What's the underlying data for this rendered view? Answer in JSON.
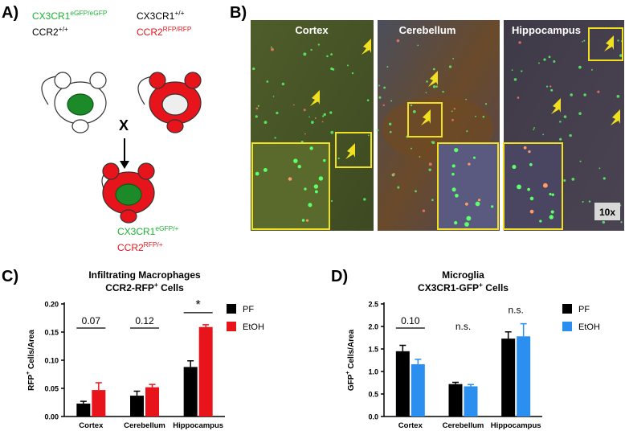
{
  "panels": {
    "a": "A)",
    "b": "B)",
    "c": "C)",
    "d": "D)"
  },
  "genotypes": {
    "parent1": [
      {
        "gene": "CX3CR1",
        "allele": "eGFP/eGFP"
      },
      {
        "gene": "CCR2",
        "allele": "+/+"
      }
    ],
    "parent2": [
      {
        "gene": "CX3CR1",
        "allele": "+/+"
      },
      {
        "gene": "CCR2",
        "allele": "RFP/RFP"
      }
    ],
    "offspring": [
      {
        "gene": "CX3CR1",
        "allele": "eGFP/+"
      },
      {
        "gene": "CCR2",
        "allele": "RFP/+"
      }
    ],
    "cross": "X"
  },
  "micrograph": {
    "regions": [
      "Cortex",
      "Cerebellum",
      "Hippocampus"
    ],
    "magnification": "10x"
  },
  "chart_data": [
    {
      "type": "bar",
      "title": "Infiltrating Macrophages",
      "subtitle": {
        "text": "CCR2-RFP",
        "sup": "+",
        "rest": " Cells"
      },
      "ylabel": {
        "text": "RFP",
        "sup": "+",
        "rest": " Cells/Area"
      },
      "categories": [
        "Cortex",
        "Cerebellum",
        "Hippocampus"
      ],
      "series": [
        {
          "name": "PF",
          "color": "#000000",
          "values": [
            0.023,
            0.037,
            0.088
          ],
          "errors": [
            0.004,
            0.008,
            0.011
          ]
        },
        {
          "name": "EtOH",
          "color": "#e8141b",
          "values": [
            0.047,
            0.052,
            0.159
          ],
          "errors": [
            0.013,
            0.005,
            0.004
          ]
        }
      ],
      "ylim": [
        0,
        0.2
      ],
      "yticks": [
        {
          "value": 0,
          "label": "0.00"
        },
        0.05,
        {
          "value": 0.1,
          "label": "0.10"
        },
        0.15,
        {
          "value": 0.2,
          "label": "0.20"
        }
      ],
      "annotations": [
        {
          "text": "0.07",
          "bracket": true
        },
        {
          "text": "0.12",
          "bracket": true
        },
        {
          "text": "*",
          "bracket": true
        }
      ]
    },
    {
      "type": "bar",
      "title": "Microglia",
      "subtitle": {
        "text": "CX3CR1-GFP",
        "sup": "+",
        "rest": " Cells"
      },
      "ylabel": {
        "text": "GFP",
        "sup": "+",
        "rest": " Cells/Area"
      },
      "categories": [
        "Cortex",
        "Cerebellum",
        "Hippocampus"
      ],
      "series": [
        {
          "name": "PF",
          "color": "#000000",
          "values": [
            1.45,
            0.72,
            1.73
          ],
          "errors": [
            0.13,
            0.04,
            0.15
          ]
        },
        {
          "name": "EtOH",
          "color": "#2b8ff0",
          "values": [
            1.16,
            0.67,
            1.78
          ],
          "errors": [
            0.11,
            0.04,
            0.28
          ]
        }
      ],
      "ylim": [
        0,
        2.5
      ],
      "yticks": [
        {
          "value": 0,
          "label": "0.0"
        },
        0.5,
        {
          "value": 1,
          "label": "1.0"
        },
        1.5,
        {
          "value": 2,
          "label": "2.0"
        },
        2.5
      ],
      "annotations": [
        {
          "text": "0.10",
          "bracket": true
        },
        {
          "text": "n.s.",
          "bracket": false
        },
        {
          "text": "n.s.",
          "bracket": false
        }
      ]
    }
  ]
}
